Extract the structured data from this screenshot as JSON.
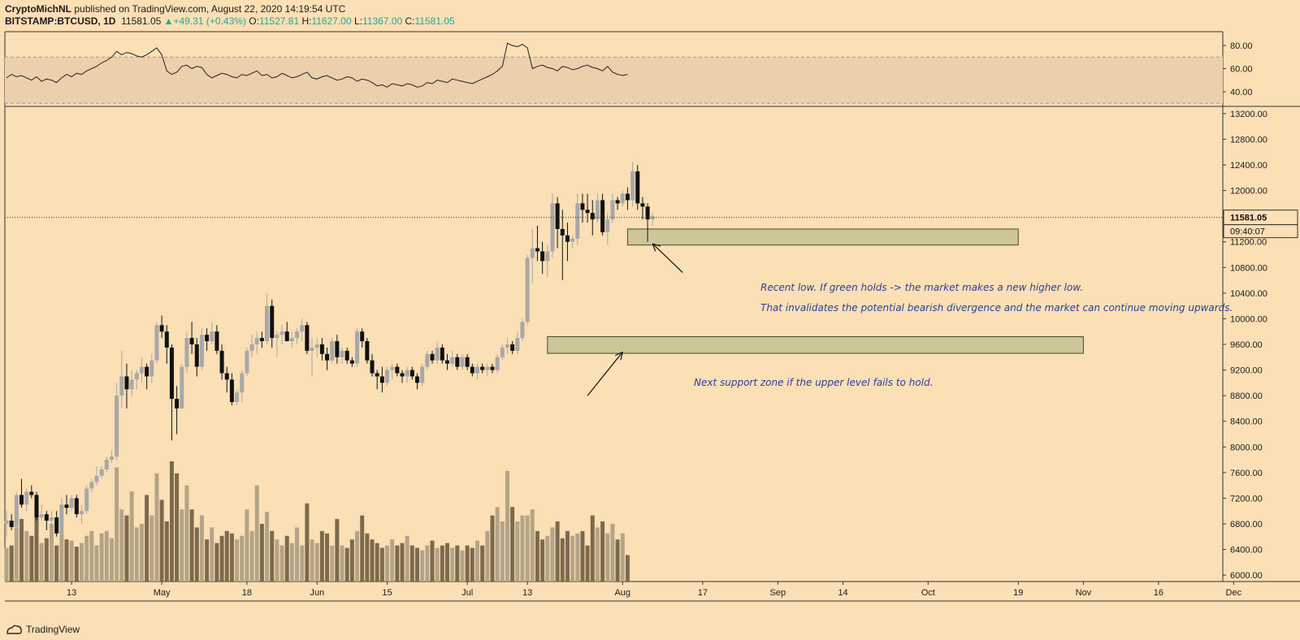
{
  "header": {
    "author": "CryptoMichNL",
    "published": "published on TradingView.com, August 22, 2020 14:19:54 UTC",
    "symbol": "BITSTAMP:BTCUSD, 1D",
    "last": "11581.05",
    "change": "+49.31 (+0.43%)",
    "o_label": "O:",
    "o": "11527.81",
    "h_label": "H:",
    "h": "11627.00",
    "l_label": "L:",
    "l": "11367.00",
    "c_label": "C:",
    "c": "11581.05"
  },
  "annotations": {
    "line1": "Recent low. If green holds -> the market makes a new higher low.",
    "line2": "That invalidates the potential bearish divergence and the market can continue moving upwards.",
    "line3": "Next support zone if the upper level fails to hold."
  },
  "footer": {
    "brand": "TradingView"
  },
  "colors": {
    "background": "#fbdfb5",
    "up_candle": "#a8a8a8",
    "down_candle": "#111111",
    "zone_fill": "#c8c393",
    "rsi_band": "#ecd0ac",
    "volume_bar": "#8a7a60",
    "text": "#2c3f9a"
  },
  "chart_data": {
    "type": "candlestick",
    "price_axis": {
      "ticks": [
        6000,
        6400,
        6800,
        7200,
        7600,
        8000,
        8400,
        8800,
        9200,
        9600,
        10000,
        10400,
        10800,
        11200,
        11600,
        12000,
        12400,
        12800,
        13200
      ],
      "tick_labels": [
        "6000.00",
        "6400.00",
        "6800.00",
        "7200.00",
        "7600.00",
        "8000.00",
        "8400.00",
        "8800.00",
        "9200.00",
        "9600.00",
        "10000.00",
        "10400.00",
        "10800.00",
        "11200.00",
        "11600.00",
        "12000.00",
        "12400.00",
        "12800.00",
        "13200.00"
      ],
      "range": [
        5900,
        13300
      ],
      "last_price": 11581.05,
      "last_price_label": "11581.05",
      "countdown_label": "09:40:07"
    },
    "rsi_axis": {
      "ticks": [
        40,
        60,
        80
      ],
      "tick_labels": [
        "40.00",
        "60.00",
        "80.00"
      ],
      "band": [
        30,
        70
      ],
      "range": [
        28,
        92
      ]
    },
    "time_axis": {
      "labels": [
        "13",
        "May",
        "18",
        "Jun",
        "15",
        "Jul",
        "13",
        "Aug",
        "17",
        "Sep",
        "14",
        "Oct",
        "19",
        "Nov",
        "16",
        "Dec"
      ],
      "label_days": [
        13,
        31,
        48,
        62,
        76,
        92,
        104,
        123,
        139,
        154,
        167,
        184,
        202,
        215,
        230,
        245
      ]
    },
    "zones": [
      {
        "from_day": 124,
        "to_day": 202,
        "low": 11150,
        "high": 11400
      },
      {
        "from_day": 108,
        "to_day": 215,
        "low": 9460,
        "high": 9720
      }
    ],
    "arrows": [
      {
        "from": [
          135,
          10720
        ],
        "to": [
          129,
          11170
        ]
      },
      {
        "from": [
          116,
          8800
        ],
        "to": [
          123,
          9480
        ]
      }
    ],
    "candles": [
      [
        6800,
        7000,
        6600,
        6850
      ],
      [
        6850,
        6950,
        6700,
        6750
      ],
      [
        6750,
        7300,
        6700,
        7250
      ],
      [
        7250,
        7500,
        7050,
        7100
      ],
      [
        7100,
        7350,
        7000,
        7300
      ],
      [
        7300,
        7400,
        7200,
        7250
      ],
      [
        7250,
        7300,
        6850,
        6900
      ],
      [
        6900,
        7100,
        6850,
        6950
      ],
      [
        6950,
        7000,
        6700,
        6850
      ],
      [
        6850,
        7000,
        6800,
        6900
      ],
      [
        6900,
        7000,
        6600,
        6650
      ],
      [
        6650,
        7200,
        6600,
        7100
      ],
      [
        7100,
        7250,
        6950,
        7050
      ],
      [
        7050,
        7250,
        7000,
        7200
      ],
      [
        7200,
        7250,
        6900,
        6950
      ],
      [
        6950,
        7100,
        6800,
        7000
      ],
      [
        7000,
        7400,
        6950,
        7350
      ],
      [
        7350,
        7500,
        7300,
        7450
      ],
      [
        7450,
        7700,
        7400,
        7550
      ],
      [
        7550,
        7700,
        7500,
        7650
      ],
      [
        7650,
        7850,
        7600,
        7800
      ],
      [
        7800,
        7950,
        7750,
        7850
      ],
      [
        7850,
        9000,
        7800,
        8800
      ],
      [
        8800,
        9500,
        8600,
        9100
      ],
      [
        9100,
        9300,
        8600,
        8900
      ],
      [
        8900,
        9200,
        8800,
        9050
      ],
      [
        9050,
        9200,
        8900,
        9150
      ],
      [
        9150,
        9400,
        9000,
        9250
      ],
      [
        9250,
        9300,
        8900,
        9100
      ],
      [
        9100,
        9450,
        9000,
        9350
      ],
      [
        9350,
        9950,
        9300,
        9900
      ],
      [
        9900,
        10050,
        9700,
        9800
      ],
      [
        9800,
        9900,
        9300,
        9550
      ],
      [
        9550,
        9600,
        8100,
        8750
      ],
      [
        8750,
        8950,
        8200,
        8600
      ],
      [
        8600,
        9300,
        8600,
        9250
      ],
      [
        9250,
        9800,
        9150,
        9700
      ],
      [
        9700,
        9950,
        9450,
        9600
      ],
      [
        9600,
        9700,
        9100,
        9250
      ],
      [
        9250,
        9850,
        9200,
        9750
      ],
      [
        9750,
        9850,
        9500,
        9650
      ],
      [
        9650,
        9950,
        9600,
        9800
      ],
      [
        9800,
        9900,
        9450,
        9500
      ],
      [
        9500,
        9600,
        9050,
        9150
      ],
      [
        9150,
        9250,
        8850,
        9050
      ],
      [
        9050,
        9150,
        8650,
        8700
      ],
      [
        8700,
        8900,
        8650,
        8850
      ],
      [
        8850,
        9200,
        8700,
        9150
      ],
      [
        9150,
        9550,
        9100,
        9500
      ],
      [
        9500,
        9750,
        9400,
        9600
      ],
      [
        9600,
        9800,
        9450,
        9700
      ],
      [
        9700,
        9800,
        9550,
        9650
      ],
      [
        9650,
        10400,
        9600,
        10200
      ],
      [
        10200,
        10300,
        9550,
        9700
      ],
      [
        9700,
        9800,
        9400,
        9750
      ],
      [
        9750,
        9900,
        9600,
        9800
      ],
      [
        9800,
        9950,
        9650,
        9650
      ],
      [
        9650,
        9800,
        9550,
        9700
      ],
      [
        9700,
        9850,
        9600,
        9800
      ],
      [
        9800,
        10000,
        9650,
        9900
      ],
      [
        9900,
        9950,
        9450,
        9500
      ],
      [
        9500,
        9700,
        9100,
        9550
      ],
      [
        9550,
        9700,
        9400,
        9600
      ],
      [
        9600,
        9700,
        9350,
        9450
      ],
      [
        9450,
        9550,
        9200,
        9350
      ],
      [
        9350,
        9700,
        9300,
        9650
      ],
      [
        9650,
        9750,
        9300,
        9400
      ],
      [
        9400,
        9550,
        9300,
        9500
      ],
      [
        9500,
        9550,
        9300,
        9350
      ],
      [
        9350,
        9400,
        9250,
        9300
      ],
      [
        9300,
        9850,
        9250,
        9800
      ],
      [
        9800,
        9850,
        9550,
        9650
      ],
      [
        9650,
        9700,
        9300,
        9350
      ],
      [
        9350,
        9450,
        9100,
        9150
      ],
      [
        9150,
        9200,
        8900,
        9100
      ],
      [
        9100,
        9250,
        8850,
        9000
      ],
      [
        9000,
        9250,
        8950,
        9200
      ],
      [
        9200,
        9300,
        9050,
        9250
      ],
      [
        9250,
        9300,
        9100,
        9150
      ],
      [
        9150,
        9200,
        9000,
        9100
      ],
      [
        9100,
        9250,
        9000,
        9200
      ],
      [
        9200,
        9250,
        9050,
        9100
      ],
      [
        9100,
        9150,
        8900,
        9000
      ],
      [
        9000,
        9300,
        8950,
        9250
      ],
      [
        9250,
        9500,
        9200,
        9450
      ],
      [
        9450,
        9500,
        9300,
        9350
      ],
      [
        9350,
        9650,
        9300,
        9550
      ],
      [
        9550,
        9600,
        9300,
        9350
      ],
      [
        9350,
        9450,
        9200,
        9300
      ],
      [
        9300,
        9500,
        9250,
        9400
      ],
      [
        9400,
        9450,
        9200,
        9250
      ],
      [
        9250,
        9450,
        9200,
        9400
      ],
      [
        9400,
        9450,
        9200,
        9250
      ],
      [
        9250,
        9300,
        9100,
        9150
      ],
      [
        9150,
        9300,
        9050,
        9250
      ],
      [
        9250,
        9300,
        9150,
        9200
      ],
      [
        9200,
        9300,
        9100,
        9250
      ],
      [
        9250,
        9300,
        9150,
        9200
      ],
      [
        9200,
        9450,
        9150,
        9400
      ],
      [
        9400,
        9600,
        9350,
        9550
      ],
      [
        9550,
        9700,
        9450,
        9600
      ],
      [
        9600,
        9650,
        9450,
        9500
      ],
      [
        9500,
        9800,
        9450,
        9700
      ],
      [
        9700,
        10000,
        9650,
        9950
      ],
      [
        9950,
        11000,
        9900,
        10950
      ],
      [
        10950,
        11400,
        10550,
        11100
      ],
      [
        11100,
        11450,
        10900,
        11050
      ],
      [
        11050,
        11200,
        10700,
        10900
      ],
      [
        10900,
        11150,
        10650,
        11050
      ],
      [
        11050,
        11950,
        10950,
        11800
      ],
      [
        11800,
        11900,
        11100,
        11400
      ],
      [
        11400,
        11700,
        10600,
        11300
      ],
      [
        11300,
        11500,
        10900,
        11200
      ],
      [
        11200,
        11300,
        11100,
        11250
      ],
      [
        11250,
        11950,
        11150,
        11800
      ],
      [
        11800,
        11950,
        11500,
        11700
      ],
      [
        11700,
        11950,
        11500,
        11650
      ],
      [
        11650,
        11850,
        11300,
        11550
      ],
      [
        11550,
        11950,
        11500,
        11850
      ],
      [
        11850,
        11950,
        11300,
        11350
      ],
      [
        11350,
        11650,
        11150,
        11550
      ],
      [
        11550,
        11950,
        11500,
        11850
      ],
      [
        11850,
        11900,
        11700,
        11800
      ],
      [
        11800,
        12000,
        11750,
        11950
      ],
      [
        11950,
        12050,
        11700,
        11850
      ],
      [
        11850,
        12450,
        11750,
        12300
      ],
      [
        12300,
        12400,
        11700,
        11800
      ],
      [
        11800,
        11900,
        11550,
        11750
      ],
      [
        11750,
        11800,
        11200,
        11550
      ],
      [
        11550,
        11650,
        11450,
        11600
      ]
    ],
    "volume": [
      0.28,
      0.3,
      0.45,
      0.52,
      0.42,
      0.38,
      0.55,
      0.32,
      0.36,
      0.48,
      0.3,
      0.4,
      0.35,
      0.34,
      0.29,
      0.32,
      0.38,
      0.42,
      0.3,
      0.4,
      0.42,
      0.36,
      0.95,
      0.6,
      0.55,
      0.75,
      0.45,
      0.48,
      0.72,
      0.55,
      0.9,
      0.68,
      0.5,
      1.0,
      0.9,
      0.6,
      0.8,
      0.6,
      0.45,
      0.55,
      0.35,
      0.45,
      0.32,
      0.38,
      0.42,
      0.4,
      0.35,
      0.38,
      0.6,
      0.42,
      0.8,
      0.48,
      0.58,
      0.42,
      0.35,
      0.3,
      0.38,
      0.32,
      0.45,
      0.3,
      0.65,
      0.35,
      0.32,
      0.42,
      0.4,
      0.3,
      0.52,
      0.3,
      0.28,
      0.35,
      0.42,
      0.55,
      0.4,
      0.35,
      0.32,
      0.28,
      0.3,
      0.35,
      0.3,
      0.32,
      0.38,
      0.3,
      0.28,
      0.26,
      0.3,
      0.34,
      0.28,
      0.3,
      0.32,
      0.28,
      0.3,
      0.26,
      0.3,
      0.28,
      0.34,
      0.3,
      0.42,
      0.55,
      0.62,
      0.5,
      0.92,
      0.62,
      0.5,
      0.55,
      0.55,
      0.6,
      0.42,
      0.35,
      0.38,
      0.45,
      0.5,
      0.36,
      0.42,
      0.38,
      0.4,
      0.42,
      0.3,
      0.55,
      0.45,
      0.5,
      0.4,
      0.48,
      0.35,
      0.4,
      0.22
    ],
    "rsi": [
      52,
      55,
      53,
      54,
      52,
      50,
      53,
      49,
      51,
      50,
      48,
      52,
      55,
      53,
      56,
      55,
      58,
      60,
      62,
      65,
      67,
      70,
      75,
      72,
      74,
      73,
      71,
      70,
      72,
      75,
      78,
      72,
      58,
      55,
      57,
      62,
      63,
      60,
      62,
      61,
      55,
      52,
      54,
      56,
      55,
      53,
      52,
      55,
      54,
      56,
      58,
      54,
      55,
      52,
      53,
      56,
      54,
      52,
      53,
      55,
      57,
      52,
      51,
      53,
      54,
      52,
      50,
      51,
      53,
      52,
      49,
      51,
      50,
      48,
      45,
      46,
      44,
      47,
      46,
      45,
      47,
      46,
      44,
      45,
      48,
      47,
      50,
      49,
      48,
      51,
      50,
      49,
      48,
      47,
      49,
      51,
      53,
      55,
      58,
      62,
      82,
      80,
      79,
      81,
      78,
      60,
      62,
      63,
      61,
      60,
      58,
      62,
      61,
      59,
      60,
      62,
      63,
      61,
      60,
      58,
      62,
      57,
      55,
      54,
      55
    ]
  }
}
